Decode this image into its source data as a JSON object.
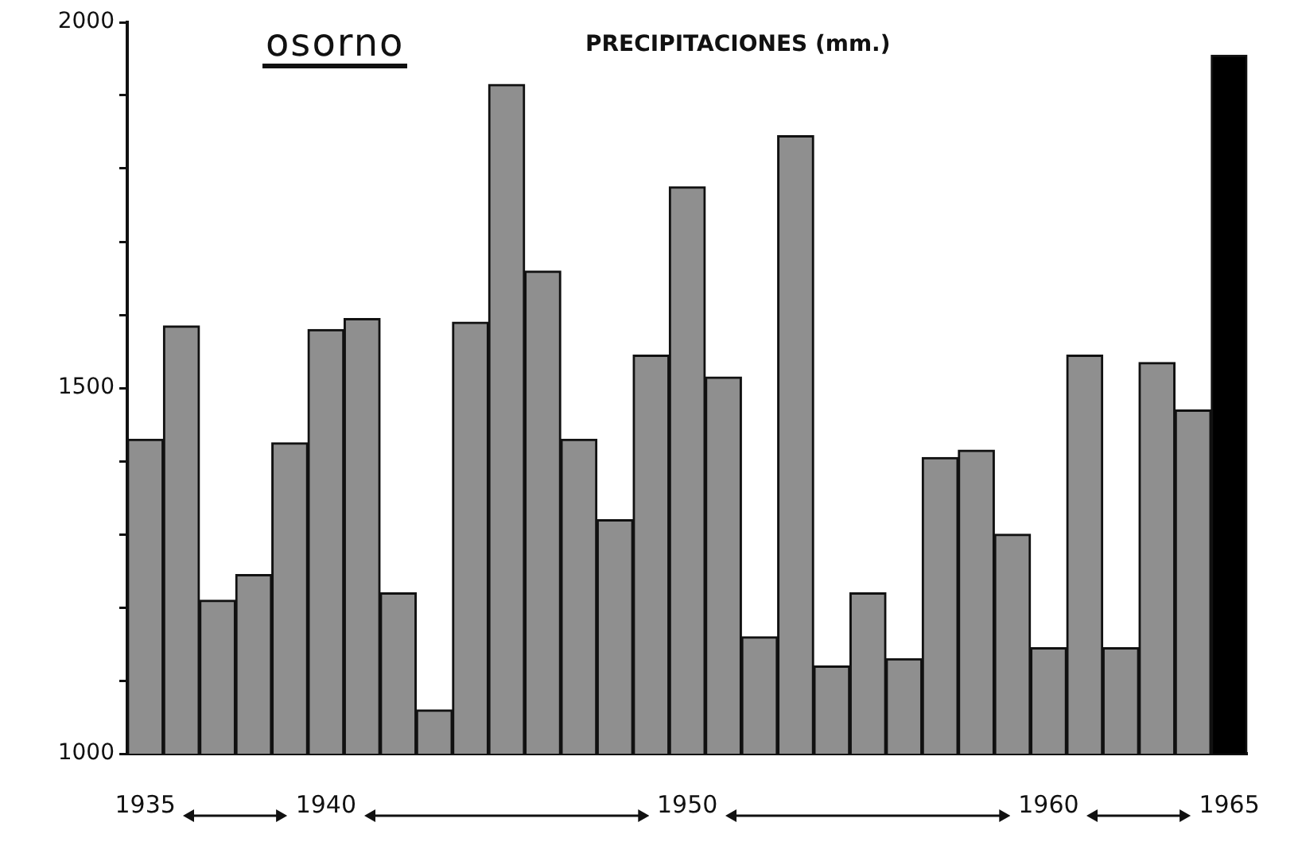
{
  "chart_data": {
    "type": "bar",
    "title": "osorno",
    "subtitle": "PRECIPITACIONES (mm.)",
    "categories": [
      "1935",
      null,
      null,
      null,
      null,
      "1940",
      null,
      null,
      null,
      null,
      null,
      null,
      null,
      null,
      null,
      "1950",
      null,
      null,
      null,
      null,
      null,
      null,
      null,
      null,
      null,
      "1960",
      null,
      null,
      null,
      null,
      "1965"
    ],
    "values": [
      1430,
      1585,
      1210,
      1245,
      1425,
      1580,
      1595,
      1220,
      1060,
      1590,
      1915,
      1660,
      1430,
      1320,
      1545,
      1775,
      1515,
      1160,
      1845,
      1120,
      1220,
      1130,
      1405,
      1415,
      1300,
      1145,
      1545,
      1145,
      1535,
      1470,
      1955
    ],
    "colors": [
      "#8f8f8f",
      "#8f8f8f",
      "#8f8f8f",
      "#8f8f8f",
      "#8f8f8f",
      "#8f8f8f",
      "#8f8f8f",
      "#8f8f8f",
      "#8f8f8f",
      "#8f8f8f",
      "#8f8f8f",
      "#8f8f8f",
      "#8f8f8f",
      "#8f8f8f",
      "#8f8f8f",
      "#8f8f8f",
      "#8f8f8f",
      "#8f8f8f",
      "#8f8f8f",
      "#8f8f8f",
      "#8f8f8f",
      "#8f8f8f",
      "#8f8f8f",
      "#8f8f8f",
      "#8f8f8f",
      "#8f8f8f",
      "#8f8f8f",
      "#8f8f8f",
      "#8f8f8f",
      "#8f8f8f",
      "#000000"
    ],
    "ylim": [
      1000,
      2000
    ],
    "yticks": [
      1000,
      {
        "value": 1100,
        "label": null
      },
      {
        "value": 1200,
        "label": null
      },
      {
        "value": 1300,
        "label": null
      },
      {
        "value": 1400,
        "label": null
      },
      1500,
      {
        "value": 1600,
        "label": null
      },
      {
        "value": 1700,
        "label": null
      },
      {
        "value": 1800,
        "label": null
      },
      {
        "value": 1900,
        "label": null
      },
      2000
    ],
    "grid": false,
    "legend": false
  }
}
